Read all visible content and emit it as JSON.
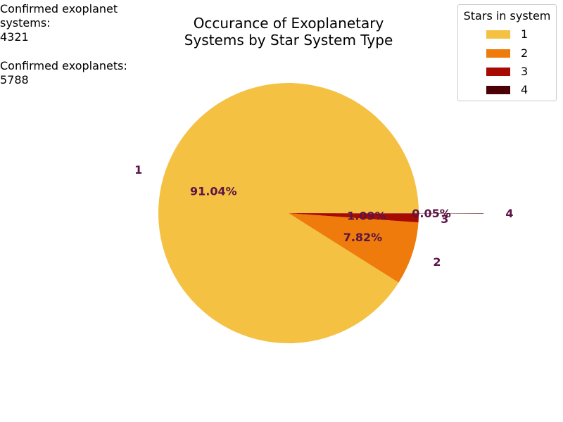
{
  "notes": {
    "systems_label": "Confirmed exoplanet\nsystems:",
    "systems_value": "4321",
    "planets_label": "Confirmed exoplanets:",
    "planets_value": "5788"
  },
  "chart_data": {
    "type": "pie",
    "title": "Occurance of Exoplanetary\nSystems by Star System Type",
    "legend_title": "Stars in system",
    "legend_position": "top-right",
    "categories": [
      "1",
      "2",
      "3",
      "4"
    ],
    "values": [
      91.04,
      7.82,
      1.09,
      0.05
    ],
    "pct_labels": [
      "91.04%",
      "7.82%",
      "1.09%",
      "0.05%"
    ],
    "colors": [
      "#F4C143",
      "#EE7B0B",
      "#A60A00",
      "#4A0005"
    ],
    "label_color": "#5B1446",
    "exploded": [
      false,
      false,
      false,
      true
    ]
  }
}
